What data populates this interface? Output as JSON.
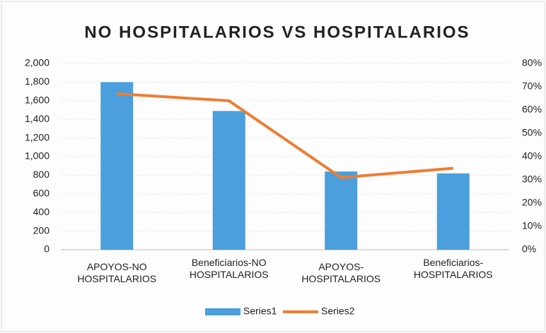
{
  "chart_data": {
    "type": "bar_line",
    "title": "NO HOSPITALARIOS VS HOSPITALARIOS",
    "categories": [
      "APOYOS-NO HOSPITALARIOS",
      "Beneficiarios-NO HOSPITALARIOS",
      "APOYOS-HOSPITALARIOS",
      "Beneficiarios-HOSPITALARIOS"
    ],
    "series": [
      {
        "name": "Series1",
        "type": "bar",
        "color": "#4a9fdc",
        "values": [
          1800,
          1490,
          840,
          820
        ]
      },
      {
        "name": "Series2",
        "type": "line",
        "axis": "y2",
        "color": "#ed7d31",
        "values": [
          67,
          64,
          31,
          35
        ]
      }
    ],
    "ylim": [
      0,
      2000
    ],
    "yticks": [
      0,
      200,
      400,
      600,
      800,
      {
        "value": 1000,
        "label": "1,000"
      },
      {
        "value": 1200,
        "label": "1,200"
      },
      {
        "value": 1400,
        "label": "1,400"
      },
      {
        "value": 1600,
        "label": "1,600"
      },
      {
        "value": 1800,
        "label": "1,800"
      },
      {
        "value": 2000,
        "label": "2,000"
      }
    ],
    "y2lim": [
      0,
      80
    ],
    "y2ticks": [
      {
        "value": 0,
        "label": "0%"
      },
      {
        "value": 10,
        "label": "10%"
      },
      {
        "value": 20,
        "label": "20%"
      },
      {
        "value": 30,
        "label": "30%"
      },
      {
        "value": 40,
        "label": "40%"
      },
      {
        "value": 50,
        "label": "50%"
      },
      {
        "value": 60,
        "label": "60%"
      },
      {
        "value": 70,
        "label": "70%"
      },
      {
        "value": 80,
        "label": "80%"
      }
    ],
    "grid": true,
    "legend": "bottom"
  }
}
